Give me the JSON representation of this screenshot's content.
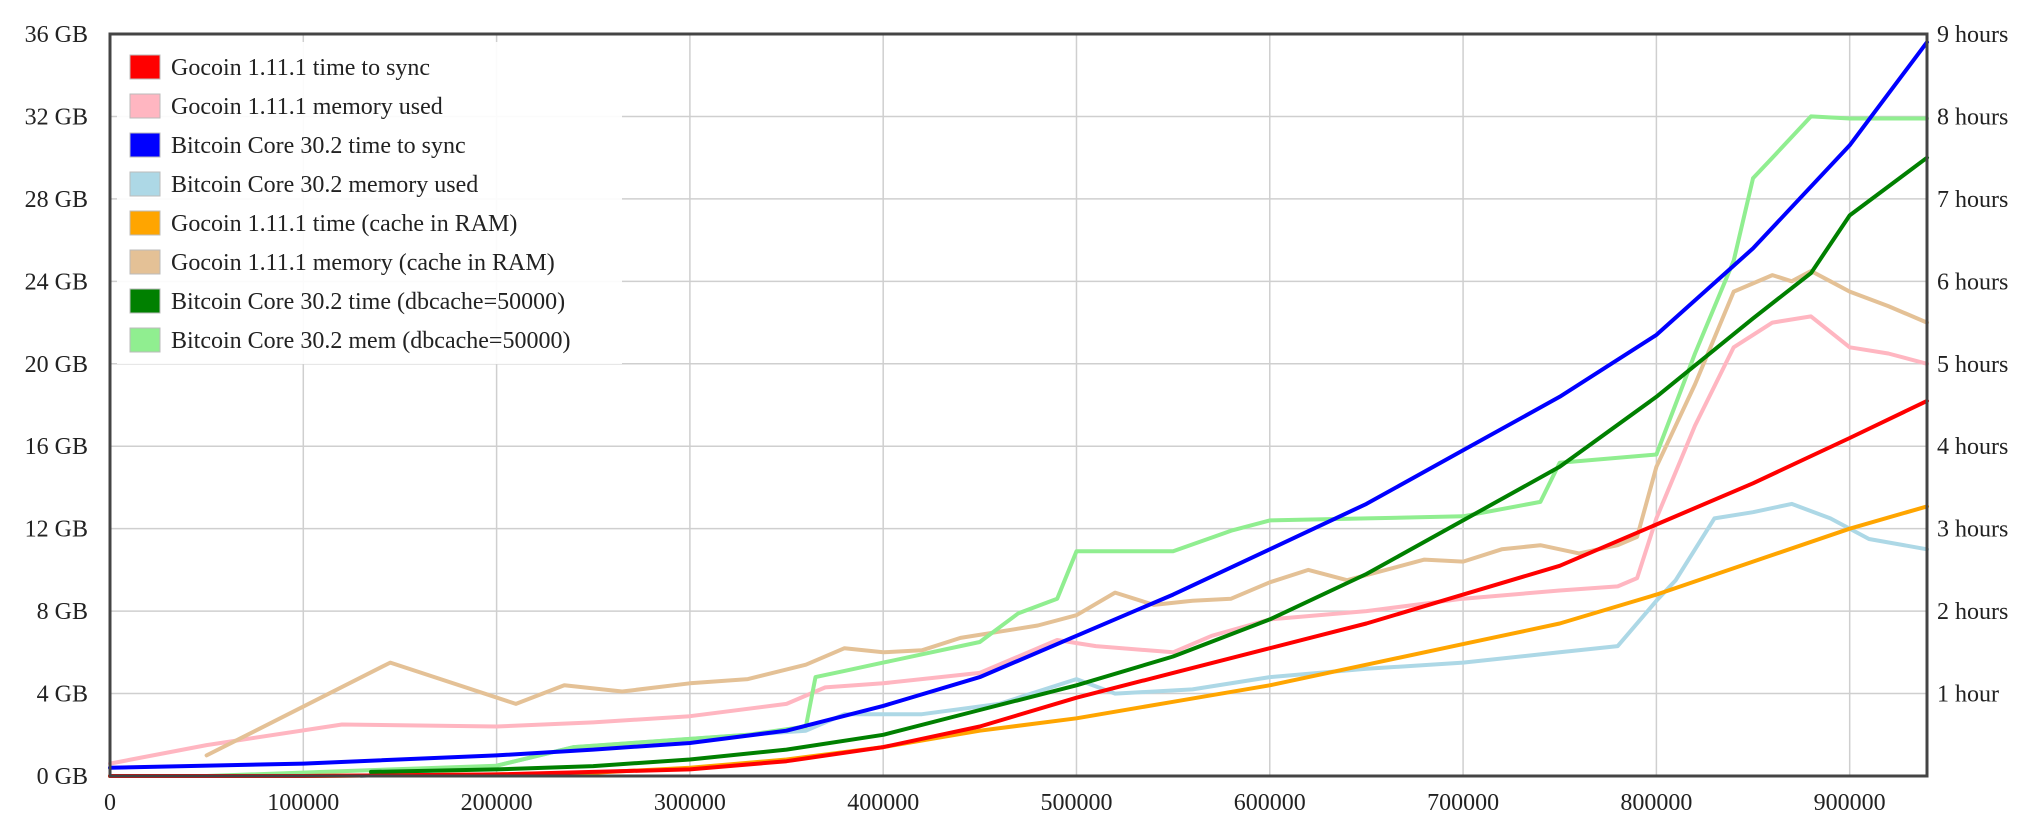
{
  "chart_data": {
    "type": "line",
    "title": "",
    "xlabel": "",
    "ylabel": "",
    "xlim": [
      0,
      940000
    ],
    "ylim_left": [
      0,
      36
    ],
    "ylim_right": [
      0,
      9
    ],
    "x_ticks": [
      0,
      100000,
      200000,
      300000,
      400000,
      500000,
      600000,
      700000,
      800000,
      900000
    ],
    "x_tick_labels": [
      "0",
      "100000",
      "200000",
      "300000",
      "400000",
      "500000",
      "600000",
      "700000",
      "800000",
      "900000"
    ],
    "y_left_ticks": [
      0,
      4,
      8,
      12,
      16,
      20,
      24,
      28,
      32,
      36
    ],
    "y_left_tick_labels": [
      "0 GB",
      "4 GB",
      "8 GB",
      "12 GB",
      "16 GB",
      "20 GB",
      "24 GB",
      "28 GB",
      "32 GB",
      "36 GB"
    ],
    "y_right_ticks": [
      1,
      2,
      3,
      4,
      5,
      6,
      7,
      8,
      9
    ],
    "y_right_tick_labels": [
      "1 hour",
      "2 hours",
      "3 hours",
      "4 hours",
      "5 hours",
      "6 hours",
      "7 hours",
      "8 hours",
      "9 hours"
    ],
    "grid": true,
    "legend_position": "top-left",
    "series": [
      {
        "name": "Gocoin 1.11.1 time to sync",
        "color": "#ff0000",
        "axis": "right",
        "x": [
          0,
          100000,
          200000,
          300000,
          350000,
          400000,
          450000,
          500000,
          550000,
          600000,
          650000,
          700000,
          750000,
          800000,
          850000,
          900000,
          940000
        ],
        "y": [
          0.0,
          0.0,
          0.02,
          0.08,
          0.18,
          0.35,
          0.6,
          0.95,
          1.25,
          1.55,
          1.85,
          2.2,
          2.55,
          3.05,
          3.55,
          4.1,
          4.55
        ]
      },
      {
        "name": "Gocoin 1.11.1 memory used",
        "color": "#ffb6c1",
        "axis": "left",
        "x": [
          0,
          50000,
          120000,
          200000,
          250000,
          300000,
          350000,
          370000,
          400000,
          450000,
          490000,
          510000,
          550000,
          570000,
          600000,
          650000,
          700000,
          750000,
          780000,
          790000,
          800000,
          820000,
          840000,
          860000,
          880000,
          900000,
          920000,
          940000
        ],
        "y": [
          0.6,
          1.5,
          2.5,
          2.4,
          2.6,
          2.9,
          3.5,
          4.3,
          4.5,
          5.0,
          6.6,
          6.3,
          6.0,
          6.8,
          7.6,
          8.0,
          8.6,
          9.0,
          9.2,
          9.6,
          12.5,
          17.0,
          20.8,
          22.0,
          22.3,
          20.8,
          20.5,
          20.0
        ]
      },
      {
        "name": "Bitcoin Core 30.2 time to sync",
        "color": "#0000ff",
        "axis": "right",
        "x": [
          0,
          100000,
          200000,
          250000,
          300000,
          350000,
          400000,
          450000,
          500000,
          550000,
          600000,
          650000,
          700000,
          750000,
          800000,
          850000,
          900000,
          940000
        ],
        "y": [
          0.1,
          0.15,
          0.25,
          0.32,
          0.4,
          0.55,
          0.85,
          1.2,
          1.7,
          2.2,
          2.75,
          3.3,
          3.95,
          4.6,
          5.35,
          6.4,
          7.65,
          8.9
        ]
      },
      {
        "name": "Bitcoin Core 30.2 memory used",
        "color": "#add8e6",
        "axis": "left",
        "x": [
          130000,
          200000,
          240000,
          300000,
          360000,
          380000,
          420000,
          460000,
          500000,
          520000,
          560000,
          600000,
          650000,
          700000,
          750000,
          780000,
          800000,
          810000,
          830000,
          850000,
          870000,
          890000,
          910000,
          940000
        ],
        "y": [
          0.0,
          0.5,
          1.4,
          1.8,
          2.2,
          3.0,
          3.0,
          3.5,
          4.7,
          4.0,
          4.2,
          4.8,
          5.2,
          5.5,
          6.0,
          6.3,
          8.5,
          9.5,
          12.5,
          12.8,
          13.2,
          12.5,
          11.5,
          11.0
        ]
      },
      {
        "name": "Gocoin 1.11.1 time (cache in RAM)",
        "color": "#ffa500",
        "axis": "right",
        "x": [
          0,
          100000,
          200000,
          250000,
          300000,
          350000,
          400000,
          450000,
          500000,
          550000,
          600000,
          650000,
          700000,
          750000,
          800000,
          850000,
          900000,
          940000
        ],
        "y": [
          0.0,
          0.0,
          0.02,
          0.04,
          0.1,
          0.2,
          0.35,
          0.55,
          0.7,
          0.9,
          1.1,
          1.35,
          1.6,
          1.85,
          2.2,
          2.6,
          3.0,
          3.27
        ]
      },
      {
        "name": "Gocoin 1.11.1 memory (cache in RAM)",
        "color": "#e4c196",
        "axis": "left",
        "x": [
          50000,
          145000,
          210000,
          235000,
          265000,
          300000,
          330000,
          360000,
          380000,
          400000,
          420000,
          440000,
          460000,
          480000,
          500000,
          520000,
          540000,
          560000,
          580000,
          600000,
          620000,
          640000,
          660000,
          680000,
          700000,
          720000,
          740000,
          760000,
          780000,
          790000,
          800000,
          820000,
          840000,
          860000,
          870000,
          880000,
          890000,
          900000,
          920000,
          940000
        ],
        "y": [
          1.0,
          5.5,
          3.5,
          4.4,
          4.1,
          4.5,
          4.7,
          5.4,
          6.2,
          6.0,
          6.1,
          6.7,
          7.0,
          7.3,
          7.8,
          8.9,
          8.3,
          8.5,
          8.6,
          9.4,
          10.0,
          9.5,
          10.0,
          10.5,
          10.4,
          11.0,
          11.2,
          10.8,
          11.2,
          11.6,
          15.0,
          19.0,
          23.5,
          24.3,
          24.0,
          24.5,
          24.0,
          23.5,
          22.8,
          22.0
        ]
      },
      {
        "name": "Bitcoin Core 30.2 time (dbcache=50000)",
        "color": "#008000",
        "axis": "right",
        "x": [
          135000,
          200000,
          250000,
          300000,
          350000,
          400000,
          450000,
          500000,
          550000,
          600000,
          650000,
          700000,
          750000,
          800000,
          850000,
          880000,
          900000,
          940000
        ],
        "y": [
          0.05,
          0.08,
          0.12,
          0.2,
          0.32,
          0.5,
          0.8,
          1.1,
          1.45,
          1.9,
          2.45,
          3.1,
          3.75,
          4.6,
          5.55,
          6.1,
          6.8,
          7.5
        ]
      },
      {
        "name": "Bitcoin Core 30.2 mem (dbcache=50000)",
        "color": "#90ee90",
        "axis": "left",
        "x": [
          50000,
          200000,
          240000,
          270000,
          300000,
          330000,
          360000,
          365000,
          380000,
          400000,
          450000,
          470000,
          490000,
          500000,
          550000,
          580000,
          600000,
          650000,
          700000,
          740000,
          750000,
          800000,
          820000,
          840000,
          850000,
          860000,
          880000,
          900000,
          940000
        ],
        "y": [
          0.0,
          0.5,
          1.4,
          1.6,
          1.8,
          2.0,
          2.4,
          4.8,
          5.1,
          5.5,
          6.5,
          7.9,
          8.6,
          10.9,
          10.9,
          11.9,
          12.4,
          12.5,
          12.6,
          13.3,
          15.2,
          15.6,
          20.5,
          25.0,
          29.0,
          30.0,
          32.0,
          31.9,
          31.9
        ]
      }
    ]
  }
}
